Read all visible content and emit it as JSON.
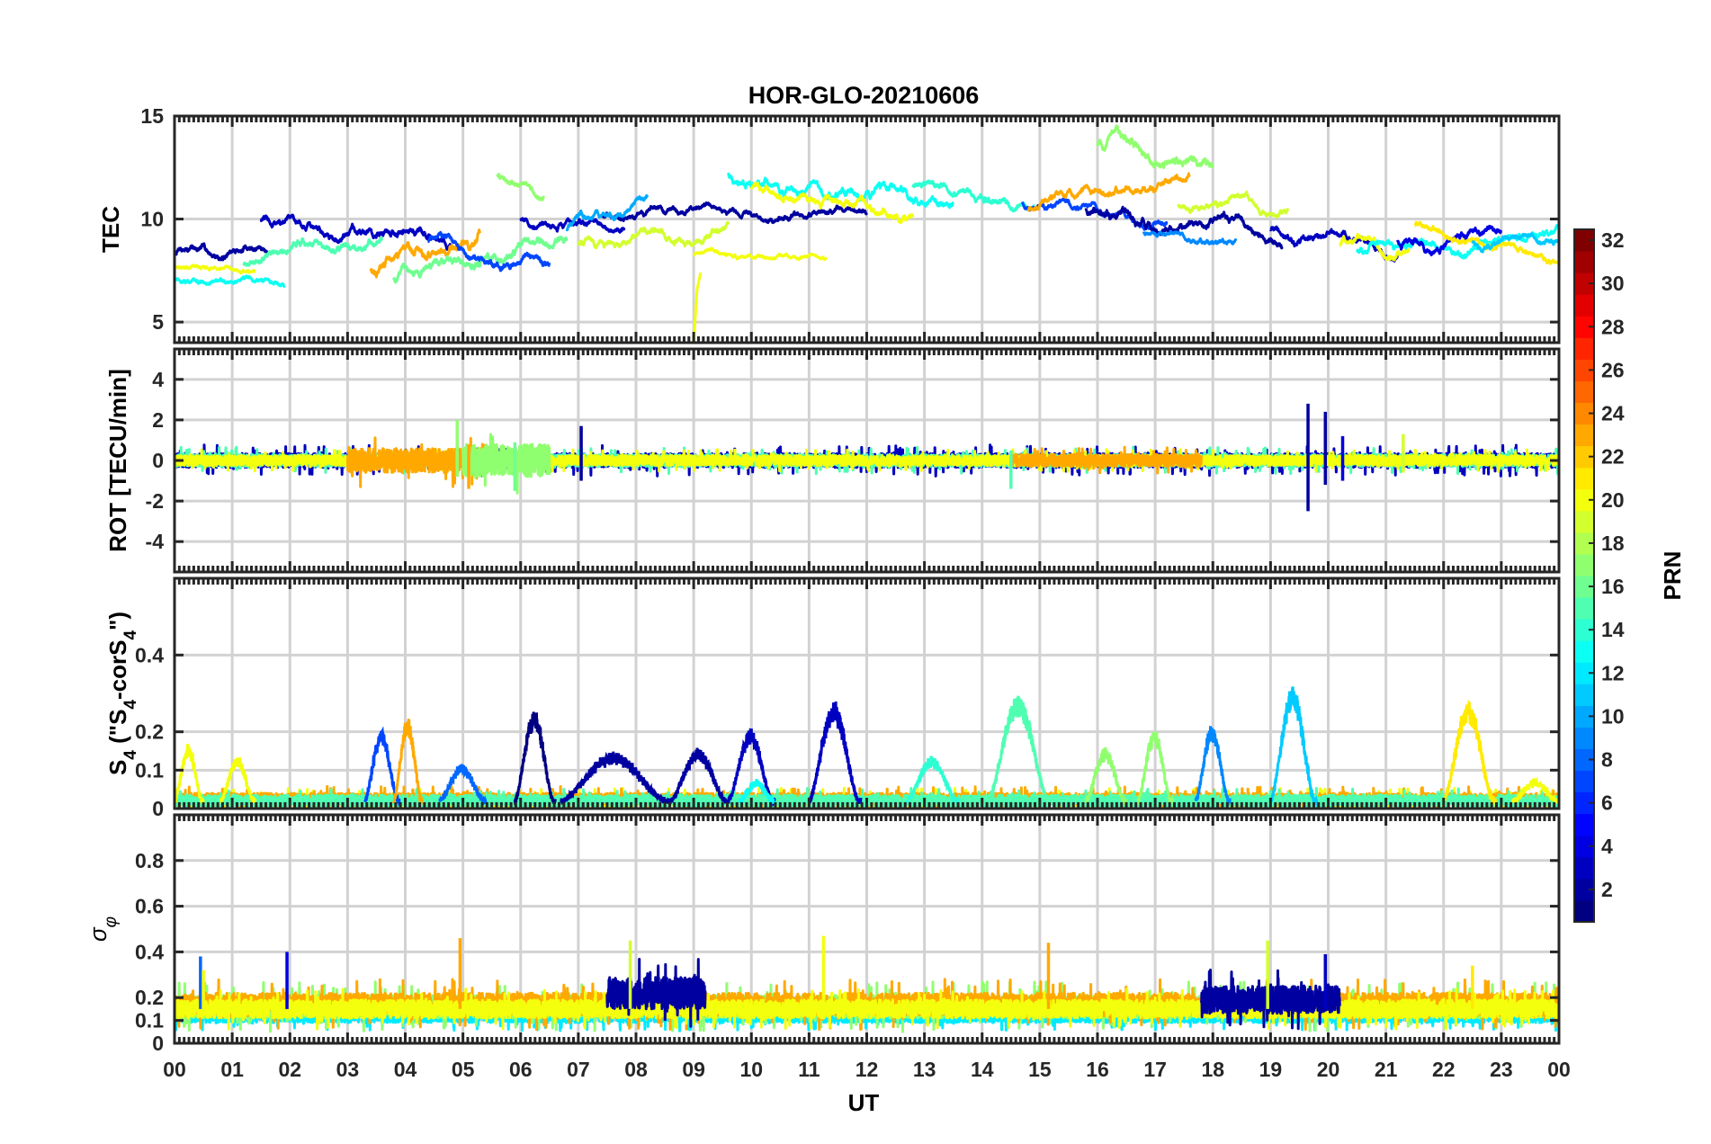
{
  "chart_data": {
    "type": "line",
    "title": "HOR-GLO-20210606",
    "xlabel": "UT",
    "x_tick_labels": [
      "00",
      "01",
      "02",
      "03",
      "04",
      "05",
      "06",
      "07",
      "08",
      "09",
      "10",
      "11",
      "12",
      "13",
      "14",
      "15",
      "16",
      "17",
      "18",
      "19",
      "20",
      "21",
      "22",
      "23",
      "00"
    ],
    "xlim": [
      0,
      24
    ],
    "grid": true,
    "colorbar": {
      "label": "PRN",
      "range": [
        1,
        32
      ],
      "tick_labels": [
        "2",
        "4",
        "6",
        "8",
        "10",
        "12",
        "14",
        "16",
        "18",
        "20",
        "22",
        "24",
        "26",
        "28",
        "30",
        "32"
      ],
      "colormap": "jet",
      "placement": "right"
    },
    "panels": [
      {
        "name": "tec",
        "ylabel": "TEC",
        "ylim": [
          4,
          15
        ],
        "y_ticks": [
          5,
          10,
          15
        ],
        "y_tick_labels": [
          "5",
          "10",
          "15"
        ],
        "series": [
          {
            "prn": 2,
            "start_ut": 0.0,
            "end_ut": 1.6,
            "base": 8.4,
            "amp": 0.6,
            "trend": 0.2
          },
          {
            "prn": 3,
            "start_ut": 1.5,
            "end_ut": 4.8,
            "base": 9.3,
            "amp": 0.6,
            "trend": -1.0
          },
          {
            "prn": 13,
            "start_ut": 0.0,
            "end_ut": 1.9,
            "base": 7.0,
            "amp": 0.4,
            "trend": 0.0
          },
          {
            "prn": 20,
            "start_ut": 0.0,
            "end_ut": 1.4,
            "base": 7.6,
            "amp": 0.3,
            "trend": -0.2
          },
          {
            "prn": 15,
            "start_ut": 1.2,
            "end_ut": 3.6,
            "base": 8.6,
            "amp": 0.6,
            "trend": 1.2
          },
          {
            "prn": 23,
            "start_ut": 3.4,
            "end_ut": 5.3,
            "base": 8.4,
            "amp": 0.8,
            "trend": 1.2
          },
          {
            "prn": 16,
            "start_ut": 3.8,
            "end_ut": 6.8,
            "base": 8.0,
            "amp": 0.7,
            "trend": 1.5
          },
          {
            "prn": 7,
            "start_ut": 4.4,
            "end_ut": 6.5,
            "base": 8.3,
            "amp": 0.6,
            "trend": -1.0
          },
          {
            "prn": 3,
            "start_ut": 6.0,
            "end_ut": 7.8,
            "base": 9.8,
            "amp": 0.5,
            "trend": 0.0
          },
          {
            "prn": 17,
            "start_ut": 5.6,
            "end_ut": 6.4,
            "base": 11.6,
            "amp": 0.6,
            "trend": -1.0
          },
          {
            "prn": 19,
            "start_ut": 7.0,
            "end_ut": 9.6,
            "base": 9.2,
            "amp": 0.6,
            "trend": 0.6
          },
          {
            "prn": 2,
            "start_ut": 7.4,
            "end_ut": 12.0,
            "base": 10.3,
            "amp": 0.5,
            "trend": 0.0
          },
          {
            "prn": 10,
            "start_ut": 6.8,
            "end_ut": 8.2,
            "base": 10.2,
            "amp": 0.5,
            "trend": 1.2
          },
          {
            "prn": 20,
            "start_ut": 9.0,
            "end_ut": 11.3,
            "base": 8.2,
            "amp": 0.3,
            "trend": 0.0
          },
          {
            "prn": 13,
            "start_ut": 9.6,
            "end_ut": 13.5,
            "base": 11.4,
            "amp": 0.7,
            "trend": -1.0
          },
          {
            "prn": 20,
            "start_ut": 10.0,
            "end_ut": 12.8,
            "base": 10.8,
            "amp": 0.6,
            "trend": -1.2
          },
          {
            "prn": 14,
            "start_ut": 12.8,
            "end_ut": 14.9,
            "base": 11.2,
            "amp": 0.6,
            "trend": -0.8
          },
          {
            "prn": 7,
            "start_ut": 14.7,
            "end_ut": 17.2,
            "base": 10.4,
            "amp": 0.5,
            "trend": -1.0
          },
          {
            "prn": 23,
            "start_ut": 14.8,
            "end_ut": 17.6,
            "base": 11.2,
            "amp": 0.6,
            "trend": 1.2
          },
          {
            "prn": 17,
            "start_ut": 16.0,
            "end_ut": 18.0,
            "base": 12.9,
            "amp": 0.8,
            "trend": -1.2
          },
          {
            "prn": 2,
            "start_ut": 15.8,
            "end_ut": 19.2,
            "base": 9.8,
            "amp": 0.7,
            "trend": -1.0
          },
          {
            "prn": 3,
            "start_ut": 19.0,
            "end_ut": 21.2,
            "base": 9.0,
            "amp": 0.6,
            "trend": -0.6
          },
          {
            "prn": 19,
            "start_ut": 17.4,
            "end_ut": 19.3,
            "base": 10.6,
            "amp": 0.5,
            "trend": 0.0
          },
          {
            "prn": 9,
            "start_ut": 16.8,
            "end_ut": 18.4,
            "base": 9.2,
            "amp": 0.4,
            "trend": -0.6
          },
          {
            "prn": 20,
            "start_ut": 20.2,
            "end_ut": 21.4,
            "base": 8.4,
            "amp": 0.6,
            "trend": -1.0
          },
          {
            "prn": 13,
            "start_ut": 20.5,
            "end_ut": 24.0,
            "base": 8.8,
            "amp": 0.6,
            "trend": 0.8
          },
          {
            "prn": 4,
            "start_ut": 21.2,
            "end_ut": 23.0,
            "base": 9.2,
            "amp": 0.6,
            "trend": 0.8
          },
          {
            "prn": 21,
            "start_ut": 21.5,
            "end_ut": 24.0,
            "base": 8.9,
            "amp": 0.5,
            "trend": -1.2
          },
          {
            "prn": 11,
            "start_ut": 22.5,
            "end_ut": 24.0,
            "base": 9.0,
            "amp": 0.5,
            "trend": 0.5
          }
        ]
      },
      {
        "name": "rot",
        "ylabel": "ROT [TECU/min]",
        "ylim": [
          -5.5,
          5.5
        ],
        "y_ticks": [
          -4,
          -2,
          0,
          2,
          4
        ],
        "y_tick_labels": [
          "-4",
          "-2",
          "0",
          "2",
          "4"
        ],
        "series": [
          {
            "prn": 3,
            "start_ut": 0.0,
            "end_ut": 24.0,
            "base": 0.0,
            "amp": 0.35
          },
          {
            "prn": 15,
            "start_ut": 0.0,
            "end_ut": 24.0,
            "base": 0.0,
            "amp": 0.3
          },
          {
            "prn": 20,
            "start_ut": 0.0,
            "end_ut": 24.0,
            "base": 0.0,
            "amp": 0.25
          },
          {
            "prn": 23,
            "start_ut": 3.0,
            "end_ut": 5.5,
            "base": 0.0,
            "amp": 0.6
          },
          {
            "prn": 17,
            "start_ut": 5.0,
            "end_ut": 6.5,
            "base": 0.0,
            "amp": 0.8
          },
          {
            "prn": 23,
            "start_ut": 14.5,
            "end_ut": 17.8,
            "base": 0.0,
            "amp": 0.3
          }
        ],
        "spikes": [
          {
            "prn": 2,
            "ut": 7.05,
            "min": -1.0,
            "max": 1.7
          },
          {
            "prn": 2,
            "ut": 19.65,
            "min": -2.5,
            "max": 2.8
          },
          {
            "prn": 2,
            "ut": 19.95,
            "min": -1.2,
            "max": 2.4
          },
          {
            "prn": 4,
            "ut": 20.25,
            "min": -1.0,
            "max": 1.2
          },
          {
            "prn": 23,
            "ut": 5.1,
            "min": -1.4,
            "max": 0.8
          },
          {
            "prn": 16,
            "ut": 5.9,
            "min": -1.5,
            "max": 0.9
          },
          {
            "prn": 17,
            "ut": 4.9,
            "min": -0.8,
            "max": 2.0
          },
          {
            "prn": 15,
            "ut": 14.5,
            "min": -1.4,
            "max": 0.5
          },
          {
            "prn": 19,
            "ut": 21.3,
            "min": -0.6,
            "max": 1.3
          }
        ]
      },
      {
        "name": "s4",
        "ylabel": "S4 (\"S4-corS4\")",
        "ylim": [
          0,
          0.6
        ],
        "y_ticks": [
          0,
          0.1,
          0.2,
          0.4
        ],
        "y_tick_labels": [
          "0",
          "0.1",
          "0.2",
          "0.4"
        ],
        "series": [
          {
            "prn": 20,
            "start_ut": 0.0,
            "end_ut": 24.0,
            "base": 0.02,
            "amp": 0.015
          },
          {
            "prn": 23,
            "start_ut": 0.0,
            "end_ut": 24.0,
            "base": 0.025,
            "amp": 0.015
          },
          {
            "prn": 15,
            "start_ut": 0.0,
            "end_ut": 24.0,
            "base": 0.02,
            "amp": 0.015
          }
        ],
        "bumps": [
          {
            "prn": 20,
            "start_ut": 0.0,
            "end_ut": 0.5,
            "peak": 0.16
          },
          {
            "prn": 20,
            "start_ut": 0.8,
            "end_ut": 1.4,
            "peak": 0.13
          },
          {
            "prn": 7,
            "start_ut": 3.3,
            "end_ut": 3.9,
            "peak": 0.2
          },
          {
            "prn": 23,
            "start_ut": 3.8,
            "end_ut": 4.3,
            "peak": 0.23
          },
          {
            "prn": 8,
            "start_ut": 4.6,
            "end_ut": 5.4,
            "peak": 0.11
          },
          {
            "prn": 1,
            "start_ut": 5.9,
            "end_ut": 6.6,
            "peak": 0.25
          },
          {
            "prn": 2,
            "start_ut": 6.7,
            "end_ut": 8.6,
            "peak": 0.14
          },
          {
            "prn": 2,
            "start_ut": 8.6,
            "end_ut": 9.6,
            "peak": 0.15
          },
          {
            "prn": 3,
            "start_ut": 9.6,
            "end_ut": 10.4,
            "peak": 0.2
          },
          {
            "prn": 13,
            "start_ut": 9.8,
            "end_ut": 10.4,
            "peak": 0.07
          },
          {
            "prn": 3,
            "start_ut": 11.0,
            "end_ut": 11.9,
            "peak": 0.27
          },
          {
            "prn": 14,
            "start_ut": 12.7,
            "end_ut": 13.6,
            "peak": 0.13
          },
          {
            "prn": 15,
            "start_ut": 14.1,
            "end_ut": 15.2,
            "peak": 0.29
          },
          {
            "prn": 17,
            "start_ut": 15.8,
            "end_ut": 16.5,
            "peak": 0.15
          },
          {
            "prn": 17,
            "start_ut": 16.7,
            "end_ut": 17.3,
            "peak": 0.2
          },
          {
            "prn": 9,
            "start_ut": 17.7,
            "end_ut": 18.3,
            "peak": 0.21
          },
          {
            "prn": 11,
            "start_ut": 19.0,
            "end_ut": 19.8,
            "peak": 0.31
          },
          {
            "prn": 21,
            "start_ut": 22.0,
            "end_ut": 22.9,
            "peak": 0.27
          },
          {
            "prn": 20,
            "start_ut": 23.2,
            "end_ut": 24.0,
            "peak": 0.07
          }
        ]
      },
      {
        "name": "sigma_phi",
        "ylabel": "σφ",
        "ylim": [
          0,
          1.0
        ],
        "y_ticks": [
          0,
          0.1,
          0.2,
          0.4,
          0.6,
          0.8
        ],
        "y_tick_labels": [
          "0",
          "0.1",
          "0.2",
          "0.4",
          "0.6",
          "0.8"
        ],
        "series": [
          {
            "prn": 12,
            "start_ut": 0.0,
            "end_ut": 24.0,
            "base": 0.12,
            "amp": 0.03
          },
          {
            "prn": 17,
            "start_ut": 0.0,
            "end_ut": 24.0,
            "base": 0.16,
            "amp": 0.05
          },
          {
            "prn": 23,
            "start_ut": 0.0,
            "end_ut": 24.0,
            "base": 0.17,
            "amp": 0.05
          },
          {
            "prn": 20,
            "start_ut": 0.0,
            "end_ut": 24.0,
            "base": 0.15,
            "amp": 0.04
          },
          {
            "prn": 2,
            "start_ut": 7.5,
            "end_ut": 9.2,
            "base": 0.22,
            "amp": 0.07
          },
          {
            "prn": 2,
            "start_ut": 17.8,
            "end_ut": 20.2,
            "base": 0.19,
            "amp": 0.06
          }
        ],
        "spikes": [
          {
            "prn": 8,
            "ut": 0.45,
            "min": 0.15,
            "max": 0.38
          },
          {
            "prn": 20,
            "ut": 0.5,
            "min": 0.15,
            "max": 0.32
          },
          {
            "prn": 4,
            "ut": 1.95,
            "min": 0.15,
            "max": 0.4
          },
          {
            "prn": 23,
            "ut": 4.95,
            "min": 0.15,
            "max": 0.46
          },
          {
            "prn": 19,
            "ut": 7.9,
            "min": 0.15,
            "max": 0.45
          },
          {
            "prn": 20,
            "ut": 11.25,
            "min": 0.15,
            "max": 0.47
          },
          {
            "prn": 23,
            "ut": 15.15,
            "min": 0.15,
            "max": 0.44
          },
          {
            "prn": 19,
            "ut": 18.95,
            "min": 0.15,
            "max": 0.45
          },
          {
            "prn": 3,
            "ut": 19.95,
            "min": 0.15,
            "max": 0.39
          },
          {
            "prn": 21,
            "ut": 22.5,
            "min": 0.15,
            "max": 0.34
          }
        ]
      }
    ]
  }
}
